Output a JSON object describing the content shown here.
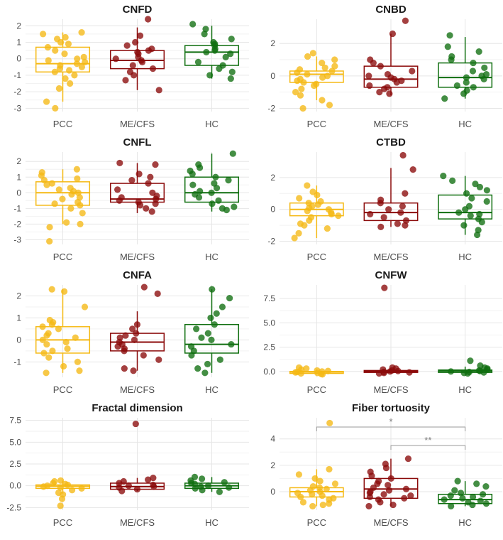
{
  "categories": [
    "PCC",
    "ME/CFS",
    "HC"
  ],
  "colors": {
    "PCC": "#F5B914",
    "ME/CFS": "#8B0A0A",
    "HC": "#0F6E0F"
  },
  "chart_data": [
    {
      "type": "box-scatter",
      "title": "CNFD",
      "ylim": [
        -3.2,
        2.4
      ],
      "yticks": [
        -3,
        -2,
        -1,
        0,
        1,
        2
      ],
      "boxes": [
        {
          "category": "PCC",
          "q1": -0.8,
          "median": -0.3,
          "q3": 0.7,
          "whisker_low": -2.6,
          "whisker_high": 1.6
        },
        {
          "category": "ME/CFS",
          "q1": -0.6,
          "median": -0.1,
          "q3": 0.5,
          "whisker_low": -1.9,
          "whisker_high": 1.9
        },
        {
          "category": "HC",
          "q1": -0.4,
          "median": 0.4,
          "q3": 0.8,
          "whisker_low": -1.2,
          "whisker_high": 2.0
        }
      ],
      "points": {
        "PCC": [
          1.6,
          1.5,
          1.3,
          1.2,
          1.0,
          0.9,
          0.7,
          0.5,
          0.3,
          0.1,
          0.0,
          -0.1,
          -0.2,
          -0.3,
          -0.4,
          -0.5,
          -0.6,
          -0.7,
          -0.8,
          -1.0,
          -1.2,
          -1.5,
          -1.8,
          -2.6,
          -3.0
        ],
        "ME/CFS": [
          2.4,
          1.4,
          1.0,
          0.8,
          0.6,
          0.5,
          0.4,
          0.3,
          0.1,
          0.0,
          -0.1,
          -0.2,
          -0.4,
          -0.6,
          -0.8,
          -1.0,
          -1.3,
          -1.9
        ],
        "HC": [
          2.1,
          1.8,
          1.5,
          1.2,
          1.0,
          0.9,
          0.8,
          0.6,
          0.5,
          0.4,
          0.3,
          0.1,
          -0.2,
          -0.4,
          -0.6,
          -0.8,
          -1.0,
          -1.2
        ]
      }
    },
    {
      "type": "box-scatter",
      "title": "CNBD",
      "ylim": [
        -2.2,
        3.5
      ],
      "yticks": [
        -2,
        0,
        2
      ],
      "boxes": [
        {
          "category": "PCC",
          "q1": -0.4,
          "median": 0.1,
          "q3": 0.3,
          "whisker_low": -1.5,
          "whisker_high": 1.2
        },
        {
          "category": "ME/CFS",
          "q1": -0.7,
          "median": -0.2,
          "q3": 0.6,
          "whisker_low": -1.2,
          "whisker_high": 2.6
        },
        {
          "category": "HC",
          "q1": -0.7,
          "median": -0.1,
          "q3": 0.8,
          "whisker_low": -1.4,
          "whisker_high": 2.4
        }
      ],
      "points": {
        "PCC": [
          1.4,
          1.2,
          1.0,
          0.8,
          0.6,
          0.5,
          0.4,
          0.3,
          0.2,
          0.1,
          0.0,
          -0.1,
          -0.2,
          -0.3,
          -0.4,
          -0.5,
          -0.6,
          -0.8,
          -1.0,
          -1.2,
          -1.5,
          -1.8,
          -2.0
        ],
        "ME/CFS": [
          3.4,
          2.6,
          1.0,
          0.8,
          0.6,
          0.3,
          0.1,
          0.0,
          -0.1,
          -0.2,
          -0.3,
          -0.4,
          -0.6,
          -0.7,
          -0.8,
          -1.0,
          -1.1
        ],
        "HC": [
          2.5,
          1.8,
          1.5,
          1.2,
          1.0,
          0.8,
          0.5,
          0.3,
          0.1,
          0.0,
          -0.1,
          -0.2,
          -0.4,
          -0.6,
          -0.7,
          -0.9,
          -1.1,
          -1.4
        ]
      }
    },
    {
      "type": "box-scatter",
      "title": "CNFL",
      "ylim": [
        -3.3,
        2.6
      ],
      "yticks": [
        -3,
        -2,
        -1,
        0,
        1,
        2
      ],
      "boxes": [
        {
          "category": "PCC",
          "q1": -0.8,
          "median": 0.0,
          "q3": 0.7,
          "whisker_low": -2.0,
          "whisker_high": 1.5
        },
        {
          "category": "ME/CFS",
          "q1": -0.6,
          "median": -0.4,
          "q3": 0.6,
          "whisker_low": -1.3,
          "whisker_high": 1.9
        },
        {
          "category": "HC",
          "q1": -0.6,
          "median": 0.0,
          "q3": 1.0,
          "whisker_low": -1.2,
          "whisker_high": 2.5
        }
      ],
      "points": {
        "PCC": [
          1.5,
          1.3,
          1.1,
          0.9,
          0.8,
          0.6,
          0.5,
          0.3,
          0.2,
          0.1,
          0.0,
          -0.1,
          -0.3,
          -0.4,
          -0.6,
          -0.7,
          -0.8,
          -1.0,
          -1.3,
          -1.9,
          -2.0,
          -2.2,
          -3.1
        ],
        "ME/CFS": [
          1.9,
          1.8,
          1.2,
          1.0,
          0.8,
          0.6,
          0.2,
          0.0,
          -0.2,
          -0.3,
          -0.4,
          -0.5,
          -0.6,
          -0.7,
          -0.8,
          -1.0,
          -1.2
        ],
        "HC": [
          2.5,
          1.8,
          1.6,
          1.4,
          1.2,
          1.0,
          0.8,
          0.6,
          0.5,
          0.3,
          0.1,
          0.0,
          -0.1,
          -0.3,
          -0.5,
          -0.7,
          -0.9,
          -1.0,
          -1.1
        ]
      }
    },
    {
      "type": "box-scatter",
      "title": "CTBD",
      "ylim": [
        -2.2,
        3.6
      ],
      "yticks": [
        -2,
        0,
        2
      ],
      "boxes": [
        {
          "category": "PCC",
          "q1": -0.4,
          "median": 0.0,
          "q3": 0.4,
          "whisker_low": -1.8,
          "whisker_high": 1.5
        },
        {
          "category": "ME/CFS",
          "q1": -0.7,
          "median": -0.2,
          "q3": 0.4,
          "whisker_low": -1.1,
          "whisker_high": 2.6
        },
        {
          "category": "HC",
          "q1": -0.6,
          "median": -0.2,
          "q3": 0.9,
          "whisker_low": -1.6,
          "whisker_high": 2.1
        }
      ],
      "points": {
        "PCC": [
          1.5,
          1.1,
          0.9,
          0.7,
          0.5,
          0.4,
          0.3,
          0.2,
          0.1,
          0.0,
          -0.1,
          -0.2,
          -0.3,
          -0.4,
          -0.5,
          -0.7,
          -0.9,
          -1.0,
          -1.2,
          -1.5,
          -1.8
        ],
        "ME/CFS": [
          3.4,
          2.5,
          1.0,
          0.6,
          0.4,
          0.2,
          0.0,
          -0.2,
          -0.3,
          -0.5,
          -0.7,
          -0.9,
          -1.0,
          -1.1
        ],
        "HC": [
          2.1,
          1.8,
          1.6,
          1.4,
          1.2,
          1.0,
          0.7,
          0.5,
          0.2,
          0.0,
          -0.2,
          -0.3,
          -0.4,
          -0.6,
          -0.8,
          -1.0,
          -1.3,
          -1.6
        ]
      }
    },
    {
      "type": "box-scatter",
      "title": "CNFA",
      "ylim": [
        -1.7,
        2.5
      ],
      "yticks": [
        -1,
        0,
        1,
        2
      ],
      "boxes": [
        {
          "category": "PCC",
          "q1": -0.6,
          "median": 0.0,
          "q3": 0.6,
          "whisker_low": -1.5,
          "whisker_high": 2.3
        },
        {
          "category": "ME/CFS",
          "q1": -0.5,
          "median": -0.1,
          "q3": 0.3,
          "whisker_low": -1.4,
          "whisker_high": 1.3
        },
        {
          "category": "HC",
          "q1": -0.6,
          "median": -0.2,
          "q3": 0.7,
          "whisker_low": -1.5,
          "whisker_high": 2.3
        }
      ],
      "points": {
        "PCC": [
          2.3,
          2.2,
          1.5,
          0.9,
          0.8,
          0.7,
          0.6,
          0.5,
          0.3,
          0.2,
          0.1,
          0.0,
          -0.1,
          -0.2,
          -0.4,
          -0.5,
          -0.6,
          -0.8,
          -1.0,
          -1.2,
          -1.4,
          -1.5
        ],
        "ME/CFS": [
          2.4,
          2.1,
          0.7,
          0.5,
          0.3,
          0.2,
          0.1,
          0.0,
          -0.1,
          -0.2,
          -0.3,
          -0.4,
          -0.5,
          -0.7,
          -0.9,
          -1.3,
          -1.4
        ],
        "HC": [
          2.3,
          1.9,
          1.5,
          1.2,
          1.0,
          0.7,
          0.5,
          0.3,
          0.1,
          0.0,
          -0.2,
          -0.3,
          -0.5,
          -0.7,
          -0.9,
          -1.1,
          -1.3,
          -1.5
        ]
      }
    },
    {
      "type": "box-scatter",
      "title": "CNFW",
      "ylim": [
        -0.6,
        8.9
      ],
      "yticks": [
        0.0,
        2.5,
        5.0,
        7.5
      ],
      "boxes": [
        {
          "category": "PCC",
          "q1": -0.2,
          "median": -0.05,
          "q3": 0.0,
          "whisker_low": -0.3,
          "whisker_high": 0.2
        },
        {
          "category": "ME/CFS",
          "q1": -0.1,
          "median": 0.0,
          "q3": 0.1,
          "whisker_low": -0.2,
          "whisker_high": 0.3
        },
        {
          "category": "HC",
          "q1": -0.1,
          "median": 0.05,
          "q3": 0.15,
          "whisker_low": -0.2,
          "whisker_high": 0.5
        }
      ],
      "points": {
        "PCC": [
          0.4,
          0.3,
          0.2,
          0.1,
          0.05,
          0.0,
          -0.05,
          -0.1,
          -0.15,
          -0.2,
          -0.25,
          -0.3
        ],
        "ME/CFS": [
          8.6,
          0.4,
          0.3,
          0.2,
          0.1,
          0.05,
          0.0,
          -0.05,
          -0.1,
          -0.15,
          -0.2
        ],
        "HC": [
          1.1,
          0.6,
          0.4,
          0.3,
          0.2,
          0.1,
          0.05,
          0.0,
          -0.05,
          -0.1,
          -0.15,
          -0.2
        ]
      }
    },
    {
      "type": "box-scatter",
      "title": "Fractal dimension",
      "ylim": [
        -2.8,
        7.8
      ],
      "yticks": [
        -2.5,
        0.0,
        2.5,
        5.0,
        7.5
      ],
      "boxes": [
        {
          "category": "PCC",
          "q1": -0.3,
          "median": -0.05,
          "q3": 0.1,
          "whisker_low": -0.9,
          "whisker_high": 0.6
        },
        {
          "category": "ME/CFS",
          "q1": -0.4,
          "median": -0.1,
          "q3": 0.3,
          "whisker_low": -0.6,
          "whisker_high": 0.9
        },
        {
          "category": "HC",
          "q1": -0.3,
          "median": 0.0,
          "q3": 0.3,
          "whisker_low": -0.7,
          "whisker_high": 1.0
        }
      ],
      "points": {
        "PCC": [
          0.6,
          0.5,
          0.3,
          0.2,
          0.1,
          0.0,
          -0.1,
          -0.2,
          -0.3,
          -0.5,
          -0.8,
          -1.0,
          -1.5,
          -2.3
        ],
        "ME/CFS": [
          7.1,
          0.9,
          0.7,
          0.5,
          0.3,
          0.1,
          0.0,
          -0.1,
          -0.2,
          -0.4,
          -0.6
        ],
        "HC": [
          1.0,
          0.8,
          0.6,
          0.4,
          0.3,
          0.2,
          0.0,
          -0.1,
          -0.2,
          -0.3,
          -0.5,
          -0.7
        ]
      }
    },
    {
      "type": "box-scatter",
      "title": "Fiber tortuosity",
      "ylim": [
        -1.4,
        5.6
      ],
      "yticks": [
        0,
        2,
        4
      ],
      "boxes": [
        {
          "category": "PCC",
          "q1": -0.4,
          "median": 0.0,
          "q3": 0.3,
          "whisker_low": -1.1,
          "whisker_high": 1.7
        },
        {
          "category": "ME/CFS",
          "q1": -0.5,
          "median": 0.2,
          "q3": 1.0,
          "whisker_low": -1.1,
          "whisker_high": 2.5
        },
        {
          "category": "HC",
          "q1": -0.9,
          "median": -0.6,
          "q3": -0.2,
          "whisker_low": -1.1,
          "whisker_high": 0.8
        }
      ],
      "points": {
        "PCC": [
          5.2,
          1.7,
          1.3,
          1.0,
          0.8,
          0.6,
          0.4,
          0.3,
          0.2,
          0.1,
          0.0,
          -0.1,
          -0.2,
          -0.3,
          -0.4,
          -0.5,
          -0.6,
          -0.8,
          -0.9,
          -1.0,
          -1.1
        ],
        "ME/CFS": [
          2.5,
          2.1,
          1.8,
          1.5,
          1.2,
          1.0,
          0.8,
          0.6,
          0.5,
          0.3,
          0.2,
          0.1,
          0.0,
          -0.1,
          -0.2,
          -0.3,
          -0.4,
          -0.5,
          -0.6,
          -0.8,
          -1.0,
          -1.1
        ],
        "HC": [
          0.8,
          0.6,
          0.4,
          0.1,
          -0.1,
          -0.2,
          -0.3,
          -0.4,
          -0.5,
          -0.6,
          -0.7,
          -0.8,
          -0.9,
          -1.0,
          -1.1
        ]
      },
      "significance": [
        {
          "from": "PCC",
          "to": "HC",
          "y": 4.9,
          "label": "*"
        },
        {
          "from": "ME/CFS",
          "to": "HC",
          "y": 3.5,
          "label": "**"
        }
      ]
    }
  ]
}
